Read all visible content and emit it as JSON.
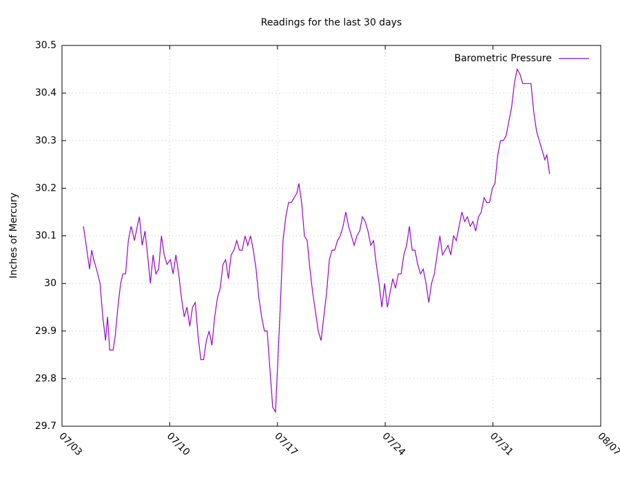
{
  "chart_data": {
    "type": "line",
    "title": "Readings for the last 30 days",
    "y_label": "Inches of Mercury",
    "series": [
      {
        "name": "Barometric Pressure",
        "color": "#9400d3",
        "x": [
          1.39,
          1.53,
          1.66,
          1.79,
          1.93,
          2.06,
          2.24,
          2.47,
          2.65,
          2.83,
          2.96,
          3.1,
          3.32,
          3.46,
          3.63,
          3.81,
          3.95,
          4.13,
          4.31,
          4.49,
          4.71,
          4.89,
          5.03,
          5.21,
          5.39,
          5.56,
          5.74,
          5.92,
          6.1,
          6.28,
          6.46,
          6.64,
          6.82,
          7.04,
          7.22,
          7.4,
          7.58,
          7.76,
          7.94,
          8.12,
          8.3,
          8.48,
          8.66,
          8.84,
          9.02,
          9.2,
          9.38,
          9.56,
          9.74,
          9.92,
          10.1,
          10.28,
          10.46,
          10.63,
          10.81,
          10.99,
          11.17,
          11.35,
          11.53,
          11.71,
          11.89,
          12.07,
          12.25,
          12.43,
          12.61,
          12.79,
          12.97,
          13.15,
          13.33,
          13.51,
          13.69,
          13.87,
          14.0,
          14.18,
          14.36,
          14.54,
          14.72,
          14.9,
          15.08,
          15.26,
          15.39,
          15.57,
          15.75,
          15.93,
          16.11,
          16.29,
          16.47,
          16.65,
          16.83,
          17.01,
          17.19,
          17.37,
          17.55,
          17.72,
          17.9,
          18.08,
          18.26,
          18.44,
          18.62,
          18.8,
          18.98,
          19.16,
          19.34,
          19.52,
          19.7,
          19.88,
          20.06,
          20.24,
          20.42,
          20.6,
          20.78,
          20.96,
          21.14,
          21.31,
          21.49,
          21.67,
          21.85,
          22.03,
          22.21,
          22.39,
          22.57,
          22.75,
          22.93,
          23.11,
          23.29,
          23.47,
          23.65,
          23.83,
          24.01,
          24.19,
          24.37,
          24.55,
          24.72,
          24.9,
          25.08,
          25.26,
          25.44,
          25.62,
          25.8,
          25.98,
          26.16,
          26.34,
          26.52,
          26.7,
          26.88,
          27.06,
          27.24,
          27.42,
          27.6,
          27.78,
          27.96,
          28.13,
          28.31,
          28.49,
          28.67,
          28.85,
          29.03,
          29.21,
          29.39,
          29.57,
          29.75,
          29.93,
          30.11,
          30.29,
          30.47,
          30.65,
          30.83,
          31.01,
          31.19,
          31.37,
          31.5,
          31.68
        ],
        "values": [
          30.12,
          30.09,
          30.06,
          30.03,
          30.07,
          30.05,
          30.03,
          30.0,
          29.93,
          29.88,
          29.93,
          29.86,
          29.86,
          29.89,
          29.95,
          30.0,
          30.02,
          30.02,
          30.09,
          30.12,
          30.09,
          30.12,
          30.14,
          30.08,
          30.11,
          30.06,
          30.0,
          30.06,
          30.02,
          30.03,
          30.1,
          30.06,
          30.04,
          30.05,
          30.02,
          30.06,
          30.02,
          29.97,
          29.93,
          29.95,
          29.91,
          29.95,
          29.96,
          29.89,
          29.84,
          29.84,
          29.88,
          29.9,
          29.87,
          29.93,
          29.97,
          29.99,
          30.04,
          30.05,
          30.01,
          30.06,
          30.07,
          30.09,
          30.07,
          30.07,
          30.1,
          30.08,
          30.1,
          30.07,
          30.03,
          29.97,
          29.93,
          29.9,
          29.9,
          29.82,
          29.74,
          29.73,
          29.82,
          29.95,
          30.09,
          30.14,
          30.17,
          30.17,
          30.18,
          30.19,
          30.21,
          30.17,
          30.1,
          30.09,
          30.03,
          29.98,
          29.94,
          29.9,
          29.88,
          29.93,
          29.98,
          30.05,
          30.07,
          30.07,
          30.09,
          30.1,
          30.12,
          30.15,
          30.12,
          30.1,
          30.08,
          30.1,
          30.11,
          30.14,
          30.13,
          30.11,
          30.08,
          30.09,
          30.04,
          30.0,
          29.95,
          30.0,
          29.95,
          29.98,
          30.01,
          29.99,
          30.02,
          30.02,
          30.06,
          30.08,
          30.12,
          30.07,
          30.07,
          30.04,
          30.02,
          30.03,
          30.0,
          29.96,
          30.0,
          30.02,
          30.06,
          30.1,
          30.06,
          30.07,
          30.08,
          30.06,
          30.1,
          30.09,
          30.12,
          30.15,
          30.13,
          30.14,
          30.12,
          30.13,
          30.11,
          30.14,
          30.15,
          30.18,
          30.17,
          30.17,
          30.2,
          30.21,
          30.27,
          30.3,
          30.3,
          30.31,
          30.34,
          30.37,
          30.42,
          30.45,
          30.44,
          30.42,
          30.42,
          30.42,
          30.42,
          30.36,
          30.32,
          30.3,
          30.28,
          30.26,
          30.27,
          30.23
        ]
      }
    ],
    "xlim": [
      0,
      35
    ],
    "xticks": [
      {
        "value": 0,
        "label": "07/03"
      },
      {
        "value": 7,
        "label": "07/10"
      },
      {
        "value": 14,
        "label": "07/17"
      },
      {
        "value": 21,
        "label": "07/24"
      },
      {
        "value": 28,
        "label": "07/31"
      },
      {
        "value": 35,
        "label": "08/07"
      }
    ],
    "ylim": [
      29.7,
      30.5
    ],
    "yticks": [
      {
        "value": 29.7,
        "label": "29.7"
      },
      {
        "value": 29.8,
        "label": "29.8"
      },
      {
        "value": 29.9,
        "label": "29.9"
      },
      {
        "value": 30,
        "label": "30"
      },
      {
        "value": 30.1,
        "label": "30.1"
      },
      {
        "value": 30.2,
        "label": "30.2"
      },
      {
        "value": 30.3,
        "label": "30.3"
      },
      {
        "value": 30.4,
        "label": "30.4"
      },
      {
        "value": 30.5,
        "label": "30.5"
      }
    ],
    "grid": true,
    "legend": "top-right"
  }
}
